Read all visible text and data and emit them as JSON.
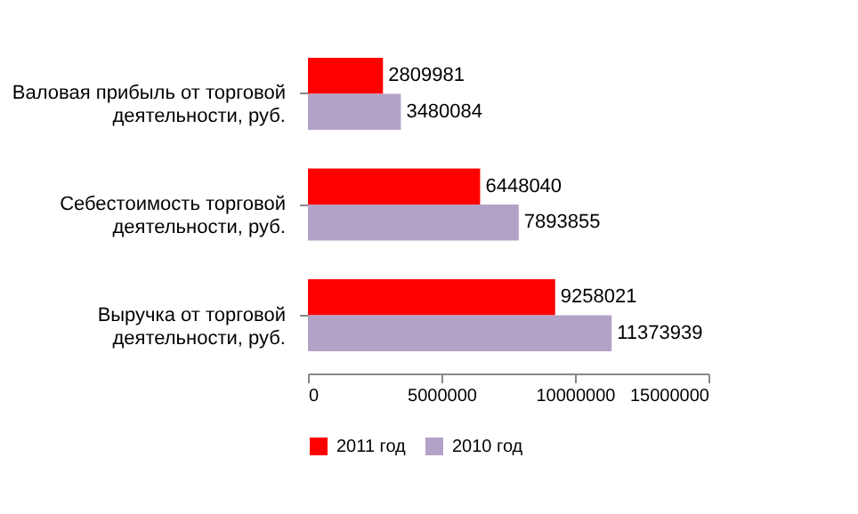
{
  "chart_data": {
    "type": "bar",
    "orientation": "horizontal",
    "categories": [
      "Валовая прибыль от торговой деятельности, руб.",
      "Себестоимость торговой деятельности, руб.",
      "Выручка от торговой деятельности, руб."
    ],
    "series": [
      {
        "name": "2011 год",
        "color": "#ff0000",
        "values": [
          2809981,
          6448040,
          9258021
        ]
      },
      {
        "name": "2010 год",
        "color": "#b3a2c7",
        "values": [
          3480084,
          7893855,
          11373939
        ]
      }
    ],
    "xlim": [
      0,
      15000000
    ],
    "xticks": [
      0,
      5000000,
      10000000,
      15000000
    ],
    "data_labels": true,
    "grid": false,
    "legend": "bottom"
  }
}
